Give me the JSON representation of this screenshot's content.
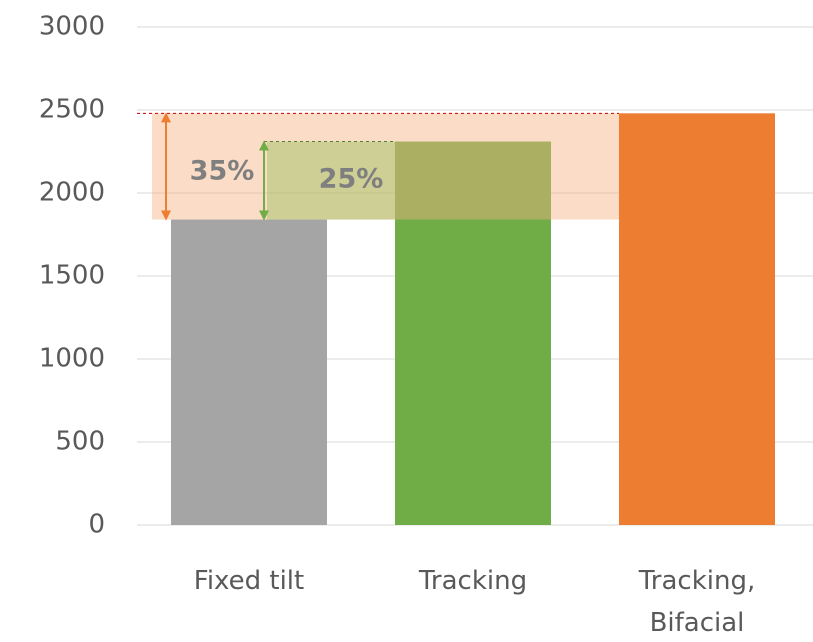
{
  "chart_data": {
    "type": "bar",
    "categories": [
      "Fixed tilt",
      "Tracking",
      "Tracking, Bifacial"
    ],
    "values": [
      1840,
      2310,
      2480
    ],
    "colors": [
      "#a5a5a5",
      "#70ad47",
      "#ed7d31"
    ],
    "ylim": [
      0,
      3000
    ],
    "yticks": [
      0,
      500,
      1000,
      1500,
      2000,
      2500,
      3000
    ],
    "grid": true,
    "annotations": [
      "35%",
      "25%"
    ]
  }
}
